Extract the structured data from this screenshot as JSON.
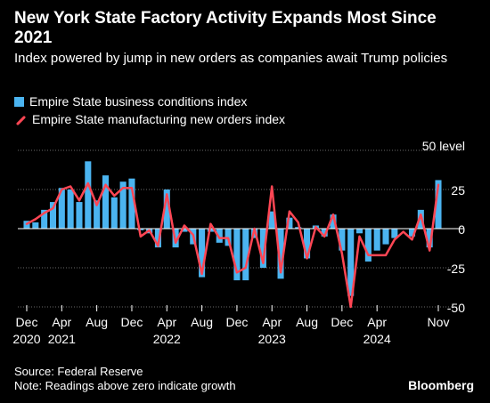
{
  "title": "New York State Factory Activity Expands Most Since 2021",
  "subtitle": "Index powered by jump in new orders as companies await Trump policies",
  "legend": {
    "bar_label": "Empire State business conditions index",
    "line_label": "Empire State manufacturing new orders index"
  },
  "footer": {
    "source": "Source: Federal Reserve",
    "note": "Note: Readings above zero indicate growth"
  },
  "brand": "Bloomberg",
  "colors": {
    "bar": "#4bb4f0",
    "line": "#ff4654",
    "background": "#000000"
  },
  "chart_data": {
    "type": "bar",
    "unit_label": "50 level",
    "ylim": [
      -55,
      55
    ],
    "yticks": [
      50,
      25,
      0,
      -25,
      -50
    ],
    "y_tick_labels": [
      "50 level",
      "25",
      "0",
      "-25",
      "-50"
    ],
    "x_tick_labels": [
      {
        "index": 0,
        "month": "Dec",
        "year": "2020"
      },
      {
        "index": 4,
        "month": "Apr",
        "year": "2021"
      },
      {
        "index": 8,
        "month": "Aug",
        "year": ""
      },
      {
        "index": 12,
        "month": "Dec",
        "year": ""
      },
      {
        "index": 16,
        "month": "Apr",
        "year": "2022"
      },
      {
        "index": 20,
        "month": "Aug",
        "year": ""
      },
      {
        "index": 24,
        "month": "Dec",
        "year": ""
      },
      {
        "index": 28,
        "month": "Apr",
        "year": "2023"
      },
      {
        "index": 32,
        "month": "Aug",
        "year": ""
      },
      {
        "index": 36,
        "month": "Dec",
        "year": ""
      },
      {
        "index": 40,
        "month": "Apr",
        "year": "2024"
      },
      {
        "index": 47,
        "month": "Nov",
        "year": ""
      }
    ],
    "categories": [
      "2020-12",
      "2021-01",
      "2021-02",
      "2021-03",
      "2021-04",
      "2021-05",
      "2021-06",
      "2021-07",
      "2021-08",
      "2021-09",
      "2021-10",
      "2021-11",
      "2021-12",
      "2022-01",
      "2022-02",
      "2022-03",
      "2022-04",
      "2022-05",
      "2022-06",
      "2022-07",
      "2022-08",
      "2022-09",
      "2022-10",
      "2022-11",
      "2022-12",
      "2023-01",
      "2023-02",
      "2023-03",
      "2023-04",
      "2023-05",
      "2023-06",
      "2023-07",
      "2023-08",
      "2023-09",
      "2023-10",
      "2023-11",
      "2023-12",
      "2024-01",
      "2024-02",
      "2024-03",
      "2024-04",
      "2024-05",
      "2024-06",
      "2024-07",
      "2024-08",
      "2024-09",
      "2024-10",
      "2024-11"
    ],
    "series": [
      {
        "name": "Empire State business conditions index",
        "type": "bar",
        "values": [
          5,
          4,
          12,
          17,
          26,
          25,
          17,
          43,
          18,
          34,
          20,
          30,
          32,
          -1,
          -3,
          -12,
          25,
          -12,
          -2,
          -10,
          -31,
          -2,
          -9,
          -11,
          -33,
          -33,
          -6,
          -25,
          11,
          -32,
          7,
          1,
          -19,
          2,
          -5,
          9,
          -14,
          -43,
          -3,
          -21,
          -14,
          -10,
          -6,
          0,
          -5,
          12,
          -12,
          31
        ]
      },
      {
        "name": "Empire State manufacturing new orders index",
        "type": "line",
        "values": [
          3,
          6,
          10,
          13,
          25,
          27,
          18,
          29,
          15,
          28,
          21,
          26,
          26,
          -5,
          -1,
          -11,
          22,
          -9,
          2,
          -4,
          -29,
          3,
          -6,
          -6,
          -28,
          -25,
          0,
          -22,
          27,
          -28,
          11,
          4,
          -19,
          1,
          -5,
          9,
          -16,
          -50,
          -5,
          -17,
          -17,
          -17,
          -7,
          -2,
          -7,
          9,
          -14,
          28
        ]
      }
    ]
  }
}
